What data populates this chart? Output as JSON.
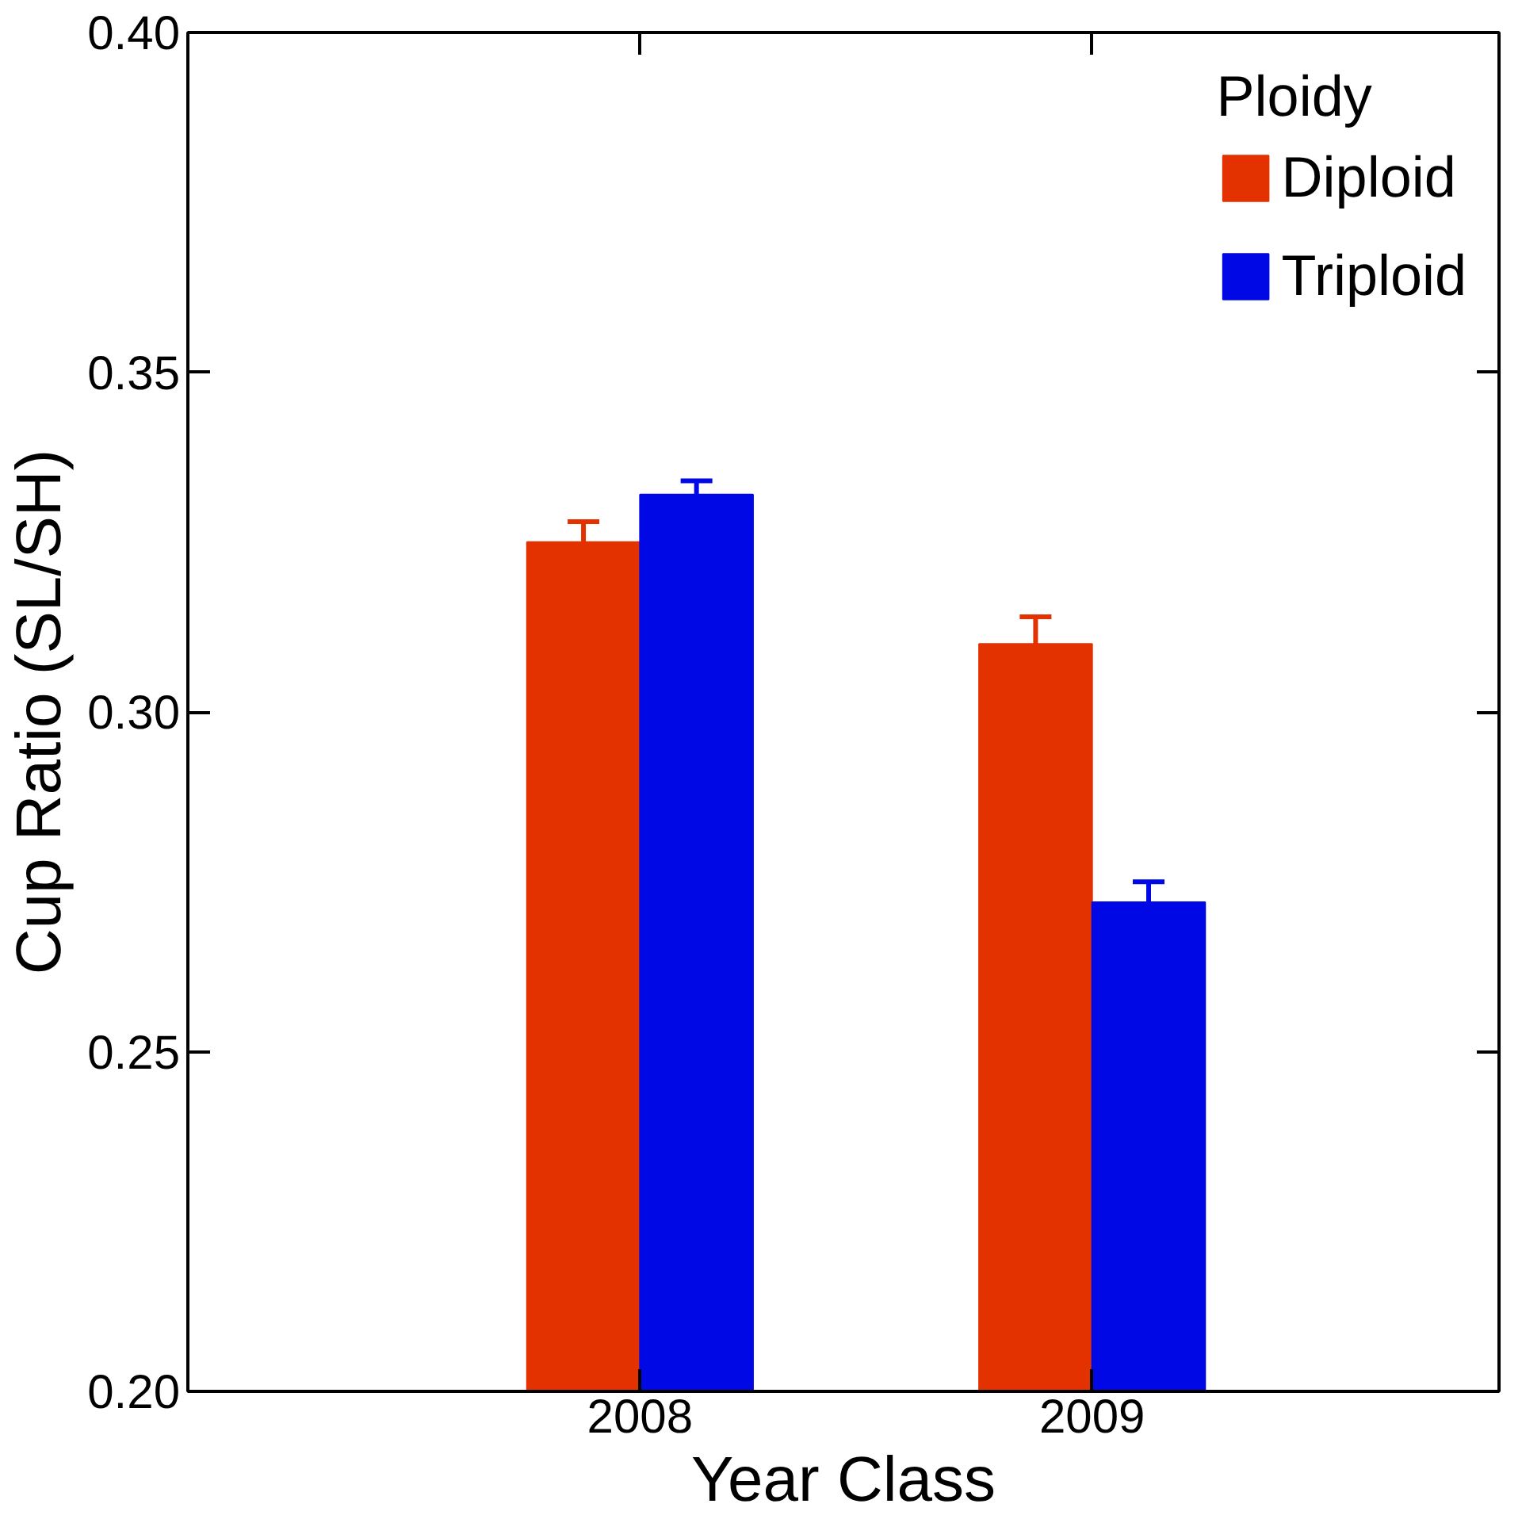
{
  "chart_data": {
    "type": "bar",
    "xlabel": "Year Class",
    "ylabel": "Cup Ratio (SL/SH)",
    "legend_title": "Ploidy",
    "categories": [
      "2008",
      "2009"
    ],
    "series": [
      {
        "name": "Diploid",
        "color": "#e33100",
        "values": [
          0.325,
          0.31
        ],
        "errors": [
          [
            0.325,
            0.328
          ],
          [
            0.31,
            0.314
          ]
        ]
      },
      {
        "name": "Triploid",
        "color": "#0008e6",
        "values": [
          0.332,
          0.272
        ],
        "errors": [
          [
            0.332,
            0.334
          ],
          [
            0.272,
            0.275
          ]
        ]
      }
    ],
    "ylim": [
      0.2,
      0.4
    ],
    "yticks": [
      {
        "value": 0.2,
        "label": "0.20"
      },
      {
        "value": 0.25,
        "label": "0.25"
      },
      {
        "value": 0.3,
        "label": "0.30"
      },
      {
        "value": 0.35,
        "label": "0.35"
      },
      {
        "value": 0.4,
        "label": "0.40"
      }
    ],
    "grid": false,
    "legend": "top right"
  }
}
